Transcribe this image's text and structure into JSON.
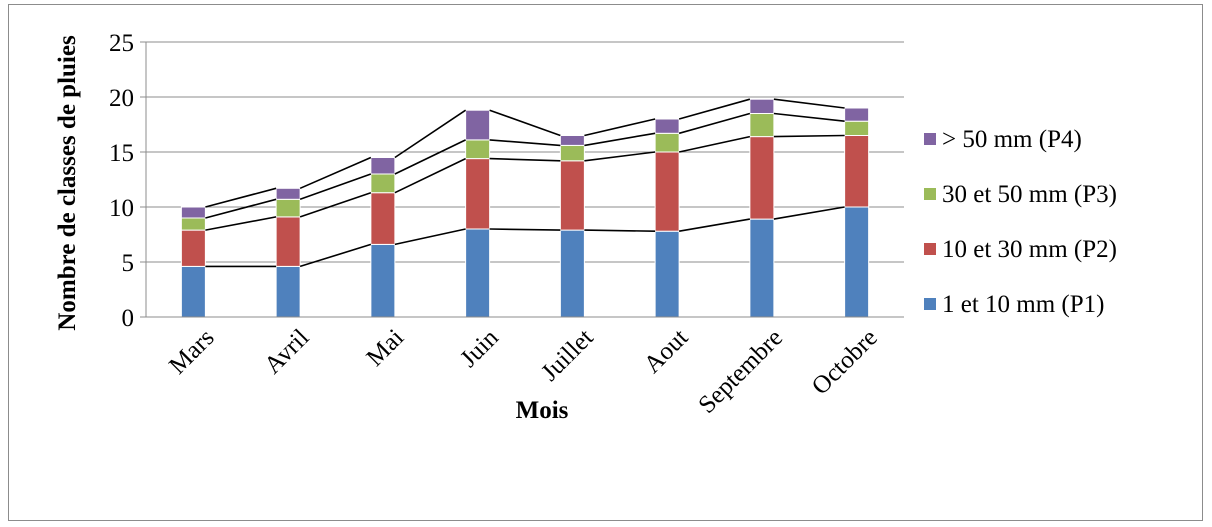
{
  "chart_data": {
    "type": "bar",
    "stacked": true,
    "title": "",
    "xlabel": "Mois",
    "ylabel": "Nombre de classes de pluies",
    "ylim": [
      0,
      25
    ],
    "yticks": [
      0,
      5,
      10,
      15,
      20,
      25
    ],
    "grid": true,
    "legend_position": "right",
    "series_lines": true,
    "categories": [
      "Mars",
      "Avril",
      "Mai",
      "Juin",
      "Juillet",
      "Aout",
      "Septembre",
      "Octobre"
    ],
    "series": [
      {
        "name": "1 et 10 mm (P1)",
        "color": "#4f81bd",
        "values": [
          4.6,
          4.6,
          6.6,
          8.0,
          7.9,
          7.8,
          8.9,
          10.0
        ]
      },
      {
        "name": "10 et 30 mm (P2)",
        "color": "#c0504d",
        "values": [
          3.3,
          4.5,
          4.7,
          6.4,
          6.3,
          7.2,
          7.5,
          6.5
        ]
      },
      {
        "name": "30 et 50 mm (P3)",
        "color": "#9bbb59",
        "values": [
          1.1,
          1.6,
          1.7,
          1.7,
          1.4,
          1.7,
          2.1,
          1.3
        ]
      },
      {
        "name": "> 50 mm (P4)",
        "color": "#8064a2",
        "values": [
          1.0,
          1.0,
          1.5,
          2.7,
          0.9,
          1.3,
          1.3,
          1.2
        ]
      }
    ]
  }
}
